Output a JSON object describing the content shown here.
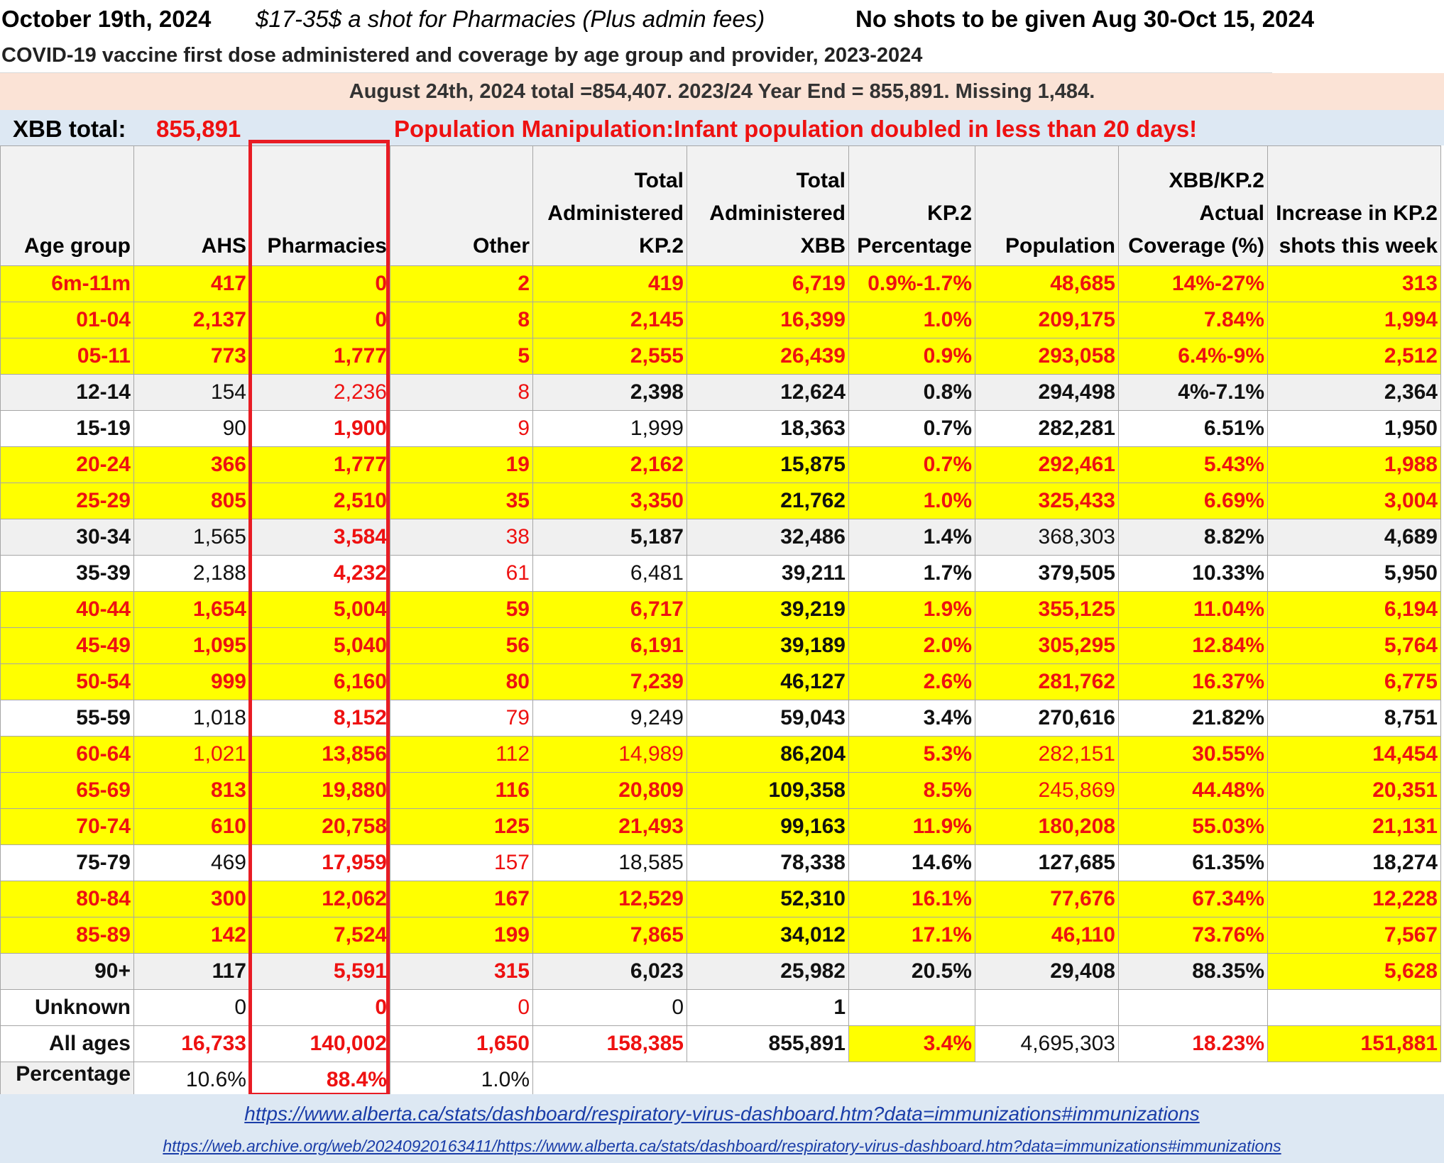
{
  "header": {
    "date": "October 19th, 2024",
    "fee_note": "$17-35$ a shot for Pharmacies (Plus admin fees)",
    "no_shots_note": "No shots to be given Aug 30-Oct 15, 2024",
    "subtitle": "COVID-19 vaccine first dose administered and coverage by age group and provider, 2023-2024",
    "totals_note": "August 24th, 2024 total =854,407. 2023/24 Year End = 855,891. Missing 1,484.",
    "xbb_label": "XBB total:",
    "xbb_value": "855,891",
    "manipulation_note": "Population Manipulation:Infant population doubled in less than 20 days!"
  },
  "columns": {
    "age_group": "Age group",
    "ahs": "AHS",
    "pharmacies": "Pharmacies",
    "other": "Other",
    "total_kp2": "Total Administered KP.2",
    "total_xbb": "Total Administered XBB",
    "kp2_pct": "KP.2 Percentage",
    "population": "Population",
    "coverage": "XBB/KP.2 Actual Coverage (%)",
    "increase": "Increase in KP.2 shots this week"
  },
  "rows": [
    {
      "age": "6m-11m",
      "ahs": "417",
      "pharm": "0",
      "other": "2",
      "kp2": "419",
      "xbb": "6,719",
      "pct": "0.9%-1.7%",
      "pop": "48,685",
      "cov": "14%-27%",
      "inc": "313"
    },
    {
      "age": "01-04",
      "ahs": "2,137",
      "pharm": "0",
      "other": "8",
      "kp2": "2,145",
      "xbb": "16,399",
      "pct": "1.0%",
      "pop": "209,175",
      "cov": "7.84%",
      "inc": "1,994"
    },
    {
      "age": "05-11",
      "ahs": "773",
      "pharm": "1,777",
      "other": "5",
      "kp2": "2,555",
      "xbb": "26,439",
      "pct": "0.9%",
      "pop": "293,058",
      "cov": "6.4%-9%",
      "inc": "2,512"
    },
    {
      "age": "12-14",
      "ahs": "154",
      "pharm": "2,236",
      "other": "8",
      "kp2": "2,398",
      "xbb": "12,624",
      "pct": "0.8%",
      "pop": "294,498",
      "cov": "4%-7.1%",
      "inc": "2,364"
    },
    {
      "age": "15-19",
      "ahs": "90",
      "pharm": "1,900",
      "other": "9",
      "kp2": "1,999",
      "xbb": "18,363",
      "pct": "0.7%",
      "pop": "282,281",
      "cov": "6.51%",
      "inc": "1,950"
    },
    {
      "age": "20-24",
      "ahs": "366",
      "pharm": "1,777",
      "other": "19",
      "kp2": "2,162",
      "xbb": "15,875",
      "pct": "0.7%",
      "pop": "292,461",
      "cov": "5.43%",
      "inc": "1,988"
    },
    {
      "age": "25-29",
      "ahs": "805",
      "pharm": "2,510",
      "other": "35",
      "kp2": "3,350",
      "xbb": "21,762",
      "pct": "1.0%",
      "pop": "325,433",
      "cov": "6.69%",
      "inc": "3,004"
    },
    {
      "age": "30-34",
      "ahs": "1,565",
      "pharm": "3,584",
      "other": "38",
      "kp2": "5,187",
      "xbb": "32,486",
      "pct": "1.4%",
      "pop": "368,303",
      "cov": "8.82%",
      "inc": "4,689"
    },
    {
      "age": "35-39",
      "ahs": "2,188",
      "pharm": "4,232",
      "other": "61",
      "kp2": "6,481",
      "xbb": "39,211",
      "pct": "1.7%",
      "pop": "379,505",
      "cov": "10.33%",
      "inc": "5,950"
    },
    {
      "age": "40-44",
      "ahs": "1,654",
      "pharm": "5,004",
      "other": "59",
      "kp2": "6,717",
      "xbb": "39,219",
      "pct": "1.9%",
      "pop": "355,125",
      "cov": "11.04%",
      "inc": "6,194"
    },
    {
      "age": "45-49",
      "ahs": "1,095",
      "pharm": "5,040",
      "other": "56",
      "kp2": "6,191",
      "xbb": "39,189",
      "pct": "2.0%",
      "pop": "305,295",
      "cov": "12.84%",
      "inc": "5,764"
    },
    {
      "age": "50-54",
      "ahs": "999",
      "pharm": "6,160",
      "other": "80",
      "kp2": "7,239",
      "xbb": "46,127",
      "pct": "2.6%",
      "pop": "281,762",
      "cov": "16.37%",
      "inc": "6,775"
    },
    {
      "age": "55-59",
      "ahs": "1,018",
      "pharm": "8,152",
      "other": "79",
      "kp2": "9,249",
      "xbb": "59,043",
      "pct": "3.4%",
      "pop": "270,616",
      "cov": "21.82%",
      "inc": "8,751"
    },
    {
      "age": "60-64",
      "ahs": "1,021",
      "pharm": "13,856",
      "other": "112",
      "kp2": "14,989",
      "xbb": "86,204",
      "pct": "5.3%",
      "pop": "282,151",
      "cov": "30.55%",
      "inc": "14,454"
    },
    {
      "age": "65-69",
      "ahs": "813",
      "pharm": "19,880",
      "other": "116",
      "kp2": "20,809",
      "xbb": "109,358",
      "pct": "8.5%",
      "pop": "245,869",
      "cov": "44.48%",
      "inc": "20,351"
    },
    {
      "age": "70-74",
      "ahs": "610",
      "pharm": "20,758",
      "other": "125",
      "kp2": "21,493",
      "xbb": "99,163",
      "pct": "11.9%",
      "pop": "180,208",
      "cov": "55.03%",
      "inc": "21,131"
    },
    {
      "age": "75-79",
      "ahs": "469",
      "pharm": "17,959",
      "other": "157",
      "kp2": "18,585",
      "xbb": "78,338",
      "pct": "14.6%",
      "pop": "127,685",
      "cov": "61.35%",
      "inc": "18,274"
    },
    {
      "age": "80-84",
      "ahs": "300",
      "pharm": "12,062",
      "other": "167",
      "kp2": "12,529",
      "xbb": "52,310",
      "pct": "16.1%",
      "pop": "77,676",
      "cov": "67.34%",
      "inc": "12,228"
    },
    {
      "age": "85-89",
      "ahs": "142",
      "pharm": "7,524",
      "other": "199",
      "kp2": "7,865",
      "xbb": "34,012",
      "pct": "17.1%",
      "pop": "46,110",
      "cov": "73.76%",
      "inc": "7,567"
    },
    {
      "age": "90+",
      "ahs": "117",
      "pharm": "5,591",
      "other": "315",
      "kp2": "6,023",
      "xbb": "25,982",
      "pct": "20.5%",
      "pop": "29,408",
      "cov": "88.35%",
      "inc": "5,628"
    },
    {
      "age": "Unknown",
      "ahs": "0",
      "pharm": "0",
      "other": "0",
      "kp2": "0",
      "xbb": "1",
      "pct": "",
      "pop": "",
      "cov": "",
      "inc": ""
    },
    {
      "age": "All ages",
      "ahs": "16,733",
      "pharm": "140,002",
      "other": "1,650",
      "kp2": "158,385",
      "xbb": "855,891",
      "pct": "3.4%",
      "pop": "4,695,303",
      "cov": "18.23%",
      "inc": "151,881"
    }
  ],
  "percentage_row": {
    "label": "Percentage",
    "ahs": "10.6%",
    "pharm": "88.4%",
    "other": "1.0%"
  },
  "links": {
    "source": "https://www.alberta.ca/stats/dashboard/respiratory-virus-dashboard.htm?data=immunizations#immunizations",
    "archive": "https://web.archive.org/web/20240920163411/https://www.alberta.ca/stats/dashboard/respiratory-virus-dashboard.htm?data=immunizations#immunizations"
  },
  "colors": {
    "highlight": "#ffff00",
    "alert_red": "#ee1111",
    "box_red": "#e81c24",
    "peach": "#fbe3d6",
    "pale_blue": "#dde8f3",
    "link_blue": "#1a3da8"
  }
}
